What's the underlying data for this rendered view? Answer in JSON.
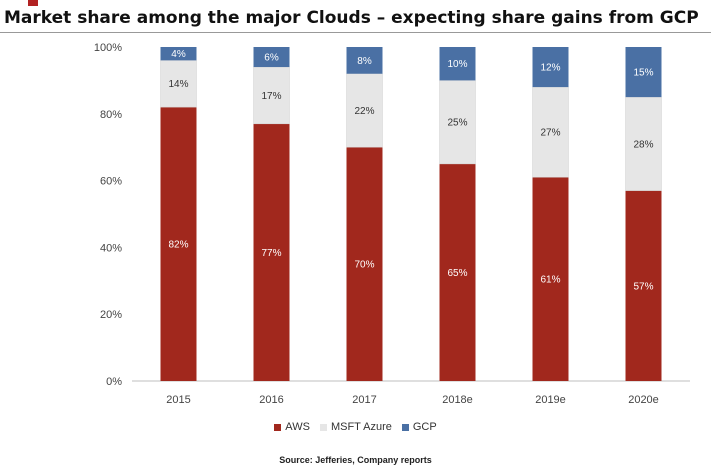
{
  "header": {
    "title": "Market share among the major Clouds – expecting share gains from GCP"
  },
  "footer": {
    "source": "Source: Jefferies, Company reports"
  },
  "colors": {
    "AWS": "#a1281d",
    "MSFT Azure": "#e6e6e6",
    "GCP": "#4a70a4"
  },
  "chart_data": {
    "type": "bar",
    "stacked": true,
    "categories": [
      "2015",
      "2016",
      "2017",
      "2018e",
      "2019e",
      "2020e"
    ],
    "series": [
      {
        "name": "AWS",
        "values": [
          82,
          77,
          70,
          65,
          61,
          57
        ],
        "labels": [
          "82%",
          "77%",
          "70%",
          "65%",
          "61%",
          "57%"
        ]
      },
      {
        "name": "MSFT Azure",
        "values": [
          14,
          17,
          22,
          25,
          27,
          28
        ],
        "labels": [
          "14%",
          "17%",
          "22%",
          "25%",
          "27%",
          "28%"
        ]
      },
      {
        "name": "GCP",
        "values": [
          4,
          6,
          8,
          10,
          12,
          15
        ],
        "labels": [
          "4%",
          "6%",
          "8%",
          "10%",
          "12%",
          "15%"
        ]
      }
    ],
    "yticks": [
      "0%",
      "20%",
      "40%",
      "60%",
      "80%",
      "100%"
    ],
    "ylim": [
      0,
      100
    ],
    "xlabel": "",
    "ylabel": "",
    "grid": false,
    "legend": "bottom"
  }
}
